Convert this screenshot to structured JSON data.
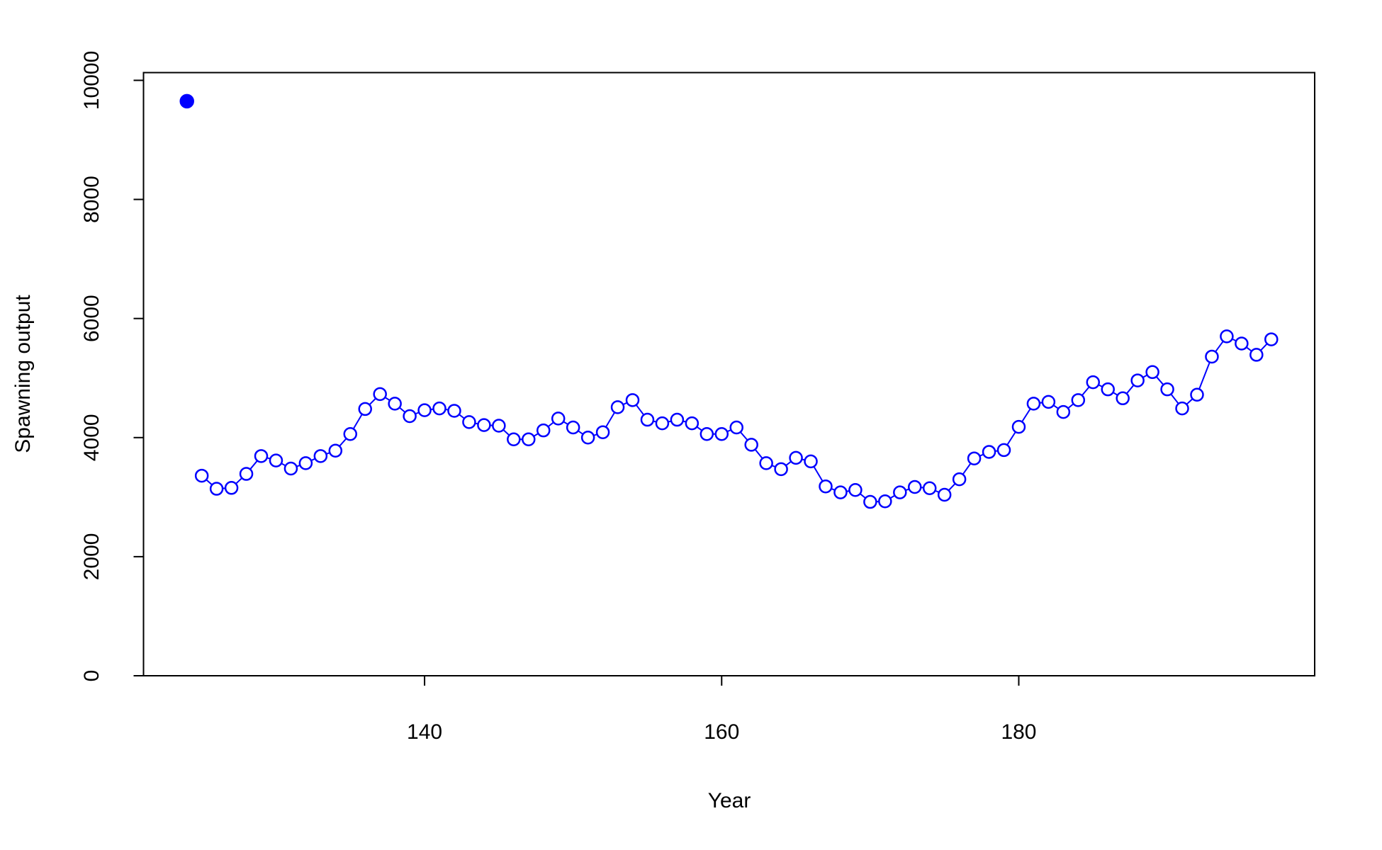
{
  "chart_data": {
    "type": "line",
    "x_label": "Year",
    "y_label": "Spawning output",
    "xlim": [
      121.08,
      199.92
    ],
    "xticks": [
      140,
      160,
      180
    ],
    "ylim": [
      0,
      10130
    ],
    "yticks": [
      0,
      2000,
      4000,
      6000,
      8000,
      10000
    ],
    "series": [
      {
        "color": "#0000ff",
        "marker": "filled",
        "line": false,
        "x": [
          124
        ],
        "values": [
          9650
        ]
      },
      {
        "color": "#0000ff",
        "marker": "open",
        "line": true,
        "x": [
          125,
          126,
          127,
          128,
          129,
          130,
          131,
          132,
          133,
          134,
          135,
          136,
          137,
          138,
          139,
          140,
          141,
          142,
          143,
          144,
          145,
          146,
          147,
          148,
          149,
          150,
          151,
          152,
          153,
          154,
          155,
          156,
          157,
          158,
          159,
          160,
          161,
          162,
          163,
          164,
          165,
          166,
          167,
          168,
          169,
          170,
          171,
          172,
          173,
          174,
          175,
          176,
          177,
          178,
          179,
          180,
          181,
          182,
          183,
          184,
          185,
          186,
          187,
          188,
          189,
          190,
          191,
          192,
          193,
          194,
          195,
          196,
          197
        ],
        "values": [
          3360,
          3140,
          3155,
          3390,
          3690,
          3615,
          3480,
          3570,
          3690,
          3780,
          4060,
          4480,
          4730,
          4570,
          4360,
          4460,
          4490,
          4450,
          4260,
          4210,
          4200,
          3970,
          3970,
          4120,
          4320,
          4170,
          4000,
          4090,
          4510,
          4630,
          4300,
          4240,
          4300,
          4240,
          4060,
          4060,
          4170,
          3880,
          3570,
          3470,
          3660,
          3600,
          3180,
          3080,
          3120,
          2920,
          2930,
          3080,
          3170,
          3150,
          3040,
          3300,
          3650,
          3760,
          3790,
          4180,
          4570,
          4600,
          4430,
          4630,
          4930,
          4810,
          4660,
          4960,
          5100,
          4810,
          4490,
          4720,
          5360,
          5700,
          5580,
          5390,
          5650
        ]
      }
    ]
  }
}
